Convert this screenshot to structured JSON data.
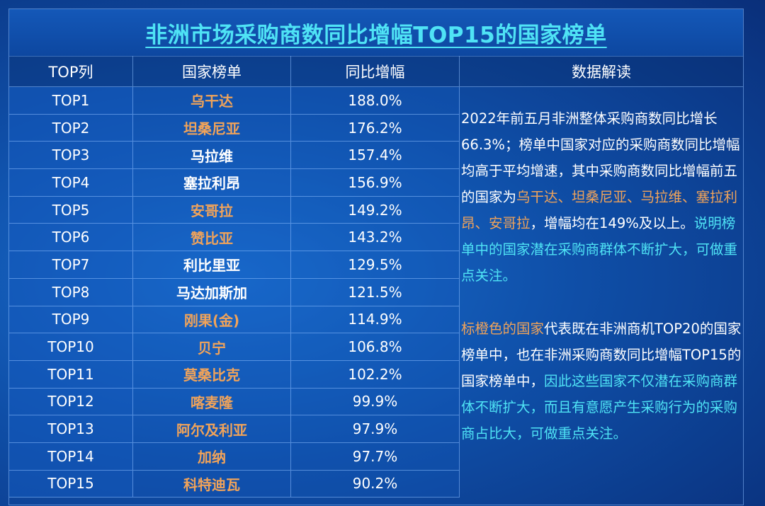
{
  "title": "非洲市场采购商数同比增幅TOP15的国家榜单",
  "headers": {
    "rank": "TOP列",
    "country": "国家榜单",
    "growth": "同比增幅",
    "interpret": "数据解读"
  },
  "colors": {
    "highlight_orange": "#f0a35a",
    "highlight_cyan": "#4fe3f5",
    "background_blue": "#0f4fa8"
  },
  "chart_data": {
    "type": "table",
    "columns": [
      "TOP列",
      "国家榜单",
      "同比增幅"
    ],
    "rows": [
      {
        "rank": "TOP1",
        "country": "乌干达",
        "growth": "188.0%",
        "value": 188.0,
        "highlight": true
      },
      {
        "rank": "TOP2",
        "country": "坦桑尼亚",
        "growth": "176.2%",
        "value": 176.2,
        "highlight": true
      },
      {
        "rank": "TOP3",
        "country": "马拉维",
        "growth": "157.4%",
        "value": 157.4,
        "highlight": false
      },
      {
        "rank": "TOP4",
        "country": "塞拉利昂",
        "growth": "156.9%",
        "value": 156.9,
        "highlight": false
      },
      {
        "rank": "TOP5",
        "country": "安哥拉",
        "growth": "149.2%",
        "value": 149.2,
        "highlight": true
      },
      {
        "rank": "TOP6",
        "country": "赞比亚",
        "growth": "143.2%",
        "value": 143.2,
        "highlight": true
      },
      {
        "rank": "TOP7",
        "country": "利比里亚",
        "growth": "129.5%",
        "value": 129.5,
        "highlight": false
      },
      {
        "rank": "TOP8",
        "country": "马达加斯加",
        "growth": "121.5%",
        "value": 121.5,
        "highlight": false
      },
      {
        "rank": "TOP9",
        "country": "刚果(金)",
        "growth": "114.9%",
        "value": 114.9,
        "highlight": true
      },
      {
        "rank": "TOP10",
        "country": "贝宁",
        "growth": "106.8%",
        "value": 106.8,
        "highlight": true
      },
      {
        "rank": "TOP11",
        "country": "莫桑比克",
        "growth": "102.2%",
        "value": 102.2,
        "highlight": true
      },
      {
        "rank": "TOP12",
        "country": "喀麦隆",
        "growth": "99.9%",
        "value": 99.9,
        "highlight": true
      },
      {
        "rank": "TOP13",
        "country": "阿尔及利亚",
        "growth": "97.9%",
        "value": 97.9,
        "highlight": true
      },
      {
        "rank": "TOP14",
        "country": "加纳",
        "growth": "97.7%",
        "value": 97.7,
        "highlight": true
      },
      {
        "rank": "TOP15",
        "country": "科特迪瓦",
        "growth": "90.2%",
        "value": 90.2,
        "highlight": true
      }
    ]
  },
  "interpretation": {
    "p1_a": "2022年前五月非洲整体采购商数同比增长66.3%；榜单中国家对应的采购商数同比增幅均高于平均增速，其中采购商数同比增幅前五的国家为",
    "p1_b": "乌干达、坦桑尼亚、马拉维、塞拉利昂、安哥拉",
    "p1_c": "，增幅均在149%及以上。",
    "p1_d": "说明榜单中的国家潜在采购商群体不断扩大，可做重点关注。",
    "p2_a": "标橙色的国家",
    "p2_b": "代表既在非洲商机TOP20的国家榜单中，也在非洲采购商数同比增幅TOP15的国家榜单中，",
    "p2_c": "因此这些国家不仅潜在采购商群体不断扩大，而且有意愿产生采购行为的采购商占比大，可做重点关注。"
  }
}
